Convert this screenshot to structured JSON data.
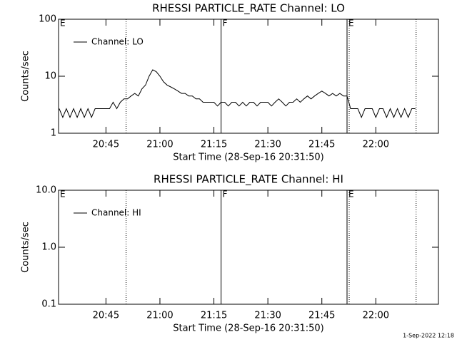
{
  "chart_data": [
    {
      "type": "line",
      "title": "RHESSI PARTICLE_RATE Channel: LO",
      "x_label": "Start Time (28-Sep-16 20:31:50)",
      "y_label": "Counts/sec",
      "log_y": true,
      "legend": "upper left",
      "x": [
        1232,
        1233,
        1234,
        1235,
        1236,
        1237,
        1238,
        1239,
        1240,
        1241,
        1242,
        1243,
        1244,
        1245,
        1246,
        1247,
        1248,
        1249,
        1250,
        1251,
        1252,
        1253,
        1254,
        1255,
        1256,
        1257,
        1258,
        1259,
        1260,
        1261,
        1262,
        1263,
        1264,
        1265,
        1266,
        1267,
        1268,
        1269,
        1270,
        1271,
        1272,
        1273,
        1274,
        1275,
        1276,
        1277,
        1278,
        1279,
        1280,
        1281,
        1282,
        1283,
        1284,
        1285,
        1286,
        1287,
        1288,
        1289,
        1290,
        1291,
        1292,
        1293,
        1294,
        1295,
        1296,
        1297,
        1298,
        1299,
        1300,
        1301,
        1302,
        1303,
        1304,
        1305,
        1306,
        1307,
        1308,
        1309,
        1310,
        1311,
        1312,
        1313,
        1314,
        1315,
        1316,
        1317,
        1318,
        1319,
        1320,
        1321,
        1322,
        1323,
        1324,
        1325,
        1326,
        1327,
        1328,
        1329,
        1330,
        1331
      ],
      "series": [
        {
          "name": "Channel: LO",
          "color": "#000000",
          "values": [
            2.7,
            1.9,
            2.7,
            1.9,
            2.7,
            1.9,
            2.7,
            1.9,
            2.7,
            1.9,
            2.7,
            2.7,
            2.7,
            2.7,
            2.7,
            3.5,
            2.7,
            3.5,
            4,
            4,
            4.5,
            5,
            4.5,
            6,
            7,
            10,
            13,
            12,
            10,
            8,
            7,
            6.5,
            6,
            5.5,
            5,
            5,
            4.5,
            4.5,
            4,
            4,
            3.5,
            3.5,
            3.5,
            3.5,
            3,
            3.5,
            3.5,
            3,
            3.5,
            3.5,
            3,
            3.5,
            3,
            3.5,
            3.5,
            3,
            3.5,
            3.5,
            3.5,
            3,
            3.5,
            4,
            3.5,
            3,
            3.5,
            3.5,
            4,
            3.5,
            4,
            4.5,
            4,
            4.5,
            5,
            5.5,
            5,
            4.5,
            5,
            4.5,
            5,
            4.5,
            4.5,
            2.7,
            2.7,
            2.7,
            1.9,
            2.7,
            2.7,
            2.7,
            1.9,
            2.7,
            2.7,
            1.9,
            2.7,
            1.9,
            2.7,
            1.9,
            2.7,
            1.9,
            2.7,
            2.7
          ]
        }
      ],
      "xlim": [
        1231.83,
        1337.4
      ],
      "xticks": [
        {
          "value": 1245,
          "label": "20:45"
        },
        {
          "value": 1260,
          "label": "21:00"
        },
        {
          "value": 1275,
          "label": "21:15"
        },
        {
          "value": 1290,
          "label": "21:30"
        },
        {
          "value": 1305,
          "label": "21:45"
        },
        {
          "value": 1320,
          "label": "22:00"
        }
      ],
      "ylim": [
        1,
        100
      ],
      "yticks": [
        1,
        10,
        100
      ],
      "events": [
        {
          "x": 1231.83,
          "label": "E"
        },
        {
          "x": 1277,
          "label": "F"
        },
        {
          "x": 1312,
          "label": "E"
        }
      ],
      "dotted_lines": [
        1250.6,
        1312.6,
        1331.2
      ]
    },
    {
      "type": "line",
      "title": "RHESSI PARTICLE_RATE Channel: HI",
      "x_label": "Start Time (28-Sep-16 20:31:50)",
      "y_label": "Counts/sec",
      "log_y": true,
      "legend": "upper left",
      "x": [],
      "series": [
        {
          "name": "Channel: HI",
          "color": "#000000",
          "values": []
        }
      ],
      "xlim": [
        1231.83,
        1337.4
      ],
      "xticks": [
        {
          "value": 1245,
          "label": "20:45"
        },
        {
          "value": 1260,
          "label": "21:00"
        },
        {
          "value": 1275,
          "label": "21:15"
        },
        {
          "value": 1290,
          "label": "21:30"
        },
        {
          "value": 1305,
          "label": "21:45"
        },
        {
          "value": 1320,
          "label": "22:00"
        }
      ],
      "ylim": [
        0.1,
        10
      ],
      "yticks": [
        0.1,
        {
          "value": 1,
          "label": "1.0"
        },
        {
          "value": 10,
          "label": "10.0"
        }
      ],
      "events": [
        {
          "x": 1231.83,
          "label": "E"
        },
        {
          "x": 1277,
          "label": "F"
        },
        {
          "x": 1312,
          "label": "E"
        }
      ],
      "dotted_lines": [
        1250.6,
        1312.6,
        1331.2
      ]
    }
  ],
  "footer": "1-Sep-2022 12:18"
}
